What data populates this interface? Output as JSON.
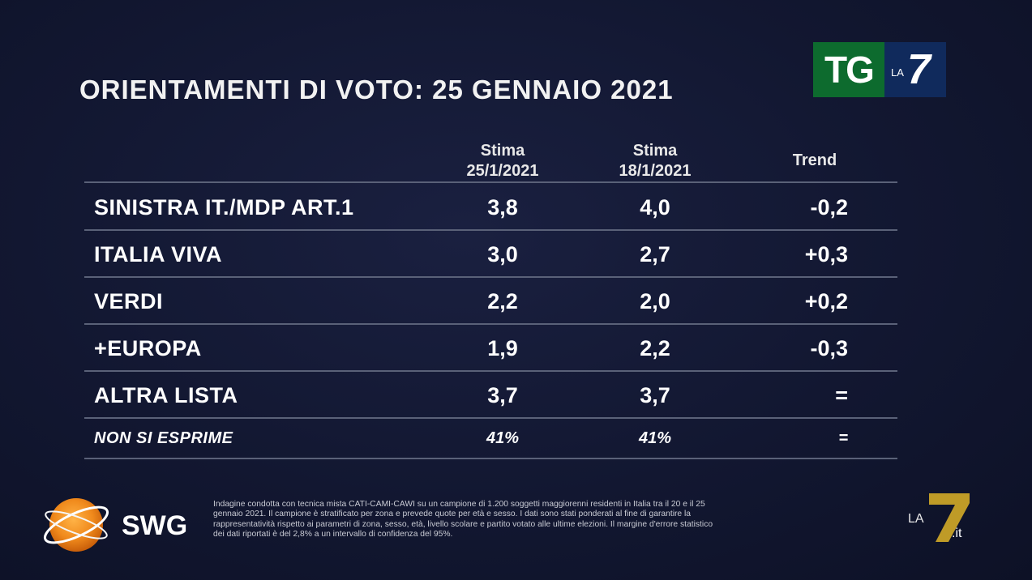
{
  "title": "ORIENTAMENTI DI VOTO: 25 GENNAIO 2021",
  "logo": {
    "tg": "TG",
    "la": "LA",
    "seven": "7"
  },
  "columns": {
    "col1_line1": "Stima",
    "col1_line2": "25/1/2021",
    "col2_line1": "Stima",
    "col2_line2": "18/1/2021",
    "col3": "Trend"
  },
  "chart_data": {
    "type": "table",
    "title": "ORIENTAMENTI DI VOTO: 25 GENNAIO 2021",
    "headers": [
      "",
      "Stima 25/1/2021",
      "Stima 18/1/2021",
      "Trend"
    ],
    "rows": [
      {
        "party": "SINISTRA IT./MDP ART.1",
        "stima_25": "3,8",
        "stima_18": "4,0",
        "trend": "-0,2"
      },
      {
        "party": "ITALIA VIVA",
        "stima_25": "3,0",
        "stima_18": "2,7",
        "trend": "+0,3"
      },
      {
        "party": "VERDI",
        "stima_25": "2,2",
        "stima_18": "2,0",
        "trend": "+0,2"
      },
      {
        "party": "+EUROPA",
        "stima_25": "1,9",
        "stima_18": "2,2",
        "trend": "-0,3"
      },
      {
        "party": "ALTRA LISTA",
        "stima_25": "3,7",
        "stima_18": "3,7",
        "trend": "="
      },
      {
        "party": "NON SI ESPRIME",
        "stima_25": "41%",
        "stima_18": "41%",
        "trend": "="
      }
    ]
  },
  "footer": {
    "brand": "SWG",
    "line1": "Indagine condotta con tecnica mista CATI-CAMI-CAWI su un campione di 1.200 soggetti maggiorenni residenti in Italia tra il 20 e il 25",
    "line2": "gennaio 2021. Il campione è stratificato per zona e prevede quote per età e sesso. I dati sono stati ponderati al fine di garantire la",
    "line3": "rappresentatività rispetto ai parametri di zona, sesso, età, livello scolare e partito votato alle ultime elezioni. Il margine d'errore statistico",
    "line4": "dei dati riportati è del 2,8% a un intervallo di confidenza del 95%.",
    "corner_la": "LA",
    "corner_seven": "7",
    "corner_it": ".it"
  },
  "colors": {
    "background": "#121731",
    "rule": "#5a6178",
    "tg_green": "#0d6b2e",
    "tg_blue": "#102a5c",
    "swg_orange": "#f08a1c",
    "la7_gold": "#c9a227"
  }
}
